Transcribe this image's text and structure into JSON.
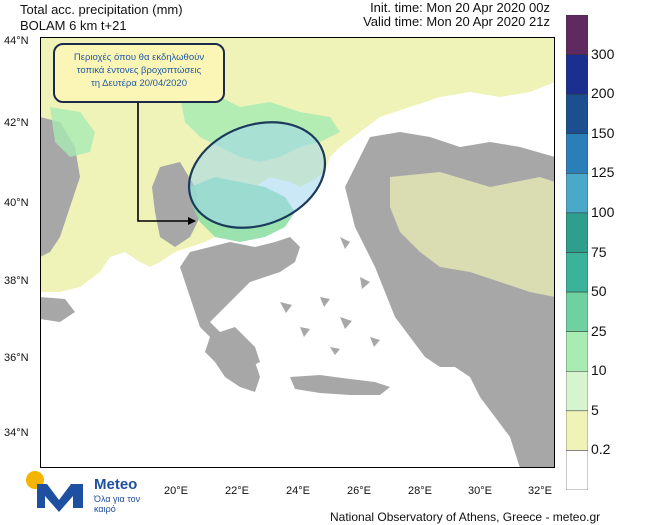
{
  "title": {
    "line1": "Total acc. precipitation (mm)",
    "line2": "BOLAM 6 km t+21"
  },
  "times": {
    "init": "Init. time: Mon 20 Apr 2020 00z",
    "valid": "Valid time: Mon 20 Apr 2020 21z"
  },
  "annotation": {
    "line1": "Περιοχές όπου θα εκδηλωθούν",
    "line2": "τοπικά έντονες βροχοπτώσεις",
    "line3": "τη Δευτέρα 20/04/2020"
  },
  "axes": {
    "lat_labels": [
      "44°N",
      "42°N",
      "40°N",
      "38°N",
      "36°N",
      "34°N"
    ],
    "lon_labels": [
      "20°E",
      "22°E",
      "24°E",
      "26°E",
      "28°E",
      "30°E",
      "32°E"
    ]
  },
  "legend": {
    "levels": [
      "300",
      "200",
      "150",
      "125",
      "100",
      "75",
      "50",
      "25",
      "10",
      "5",
      "0.2"
    ],
    "colors": [
      "#5f2a5f",
      "#1b2f8f",
      "#1c4f90",
      "#2a7fb8",
      "#4aa9c9",
      "#2e9f8c",
      "#3bb39a",
      "#6fd19f",
      "#a8ebb3",
      "#d6f5cf",
      "#f0f3b7",
      "#ffffff"
    ]
  },
  "colors": {
    "land": "#a7a7a7",
    "sea": "#ffffff",
    "light_precip": "#f0f3b7",
    "green_precip": "#a8ebb3",
    "ellipse_fill": "#9fd6ee",
    "ellipse_stroke": "#1b3a5c"
  },
  "logo": {
    "name": "Meteo",
    "tagline": "Όλα για τον καιρό"
  },
  "credit": "National Observatory of Athens, Greece - meteo.gr"
}
